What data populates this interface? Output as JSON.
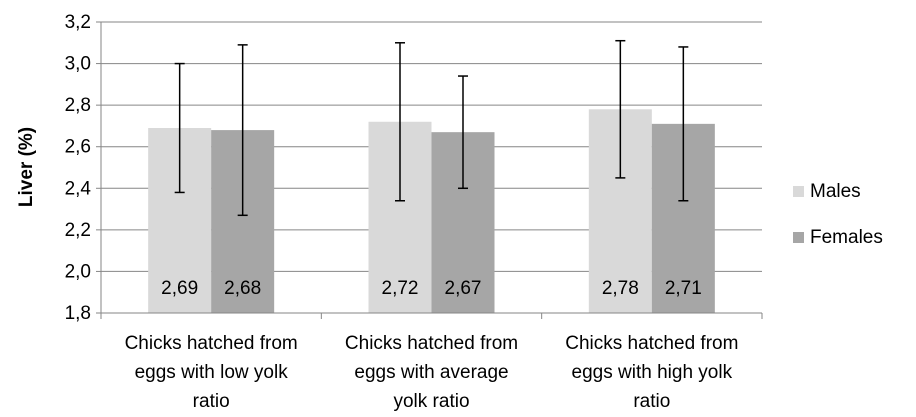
{
  "chart_data": {
    "type": "bar",
    "title": "",
    "xlabel": "",
    "ylabel": "Liver (%)",
    "ylim": [
      1.8,
      3.2
    ],
    "yticks": [
      "1,8",
      "2,0",
      "2,2",
      "2,4",
      "2,6",
      "2,8",
      "3,0",
      "3,2"
    ],
    "ytick_values": [
      1.8,
      2.0,
      2.2,
      2.4,
      2.6,
      2.8,
      3.0,
      3.2
    ],
    "grid": true,
    "legend_position": "right",
    "categories": [
      [
        "Chicks hatched from",
        "eggs with low yolk",
        "ratio"
      ],
      [
        "Chicks hatched from",
        "eggs with average",
        "yolk ratio"
      ],
      [
        "Chicks hatched from",
        "eggs with high yolk",
        "ratio"
      ]
    ],
    "series": [
      {
        "name": "Males",
        "color": "#d9d9d9",
        "values": [
          2.69,
          2.72,
          2.78
        ],
        "labels": [
          "2,69",
          "2,72",
          "2,78"
        ],
        "error_low": [
          2.38,
          2.34,
          2.45
        ],
        "error_high": [
          3.0,
          3.1,
          3.11
        ]
      },
      {
        "name": "Females",
        "color": "#a6a6a6",
        "values": [
          2.68,
          2.67,
          2.71
        ],
        "labels": [
          "2,68",
          "2,67",
          "2,71"
        ],
        "error_low": [
          2.27,
          2.4,
          2.34
        ],
        "error_high": [
          3.09,
          2.94,
          3.08
        ]
      }
    ]
  }
}
